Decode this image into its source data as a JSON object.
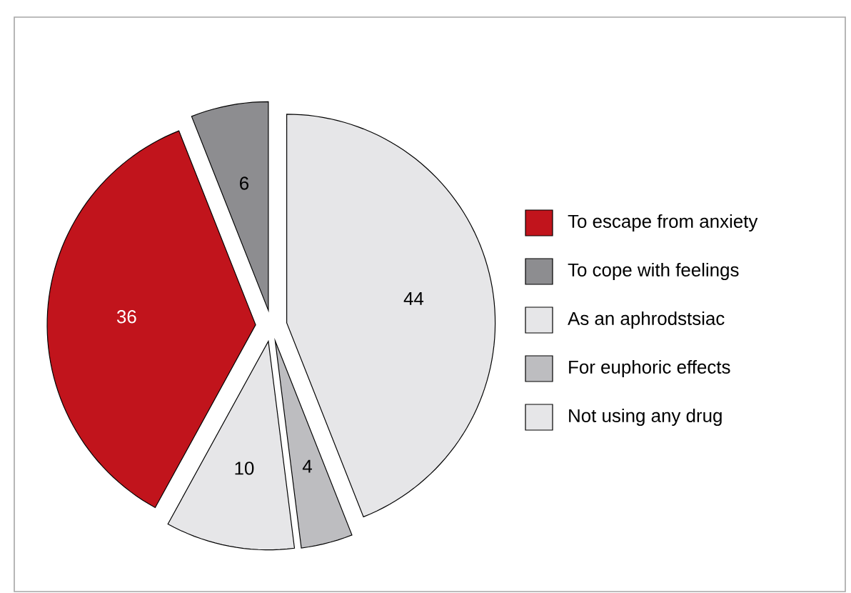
{
  "chart_data": {
    "type": "pie",
    "categories": [
      "To escape from anxiety",
      "To cope with feelings",
      "As an aphrodstsiac",
      "For euphoric effects",
      "Not using any drug"
    ],
    "values": [
      36,
      6,
      44,
      4,
      10
    ],
    "colors": [
      "#c1141c",
      "#8d8d90",
      "#e6e6e8",
      "#bdbdc0",
      "#e6e6e8"
    ],
    "data_labels": true,
    "legend": "right"
  }
}
